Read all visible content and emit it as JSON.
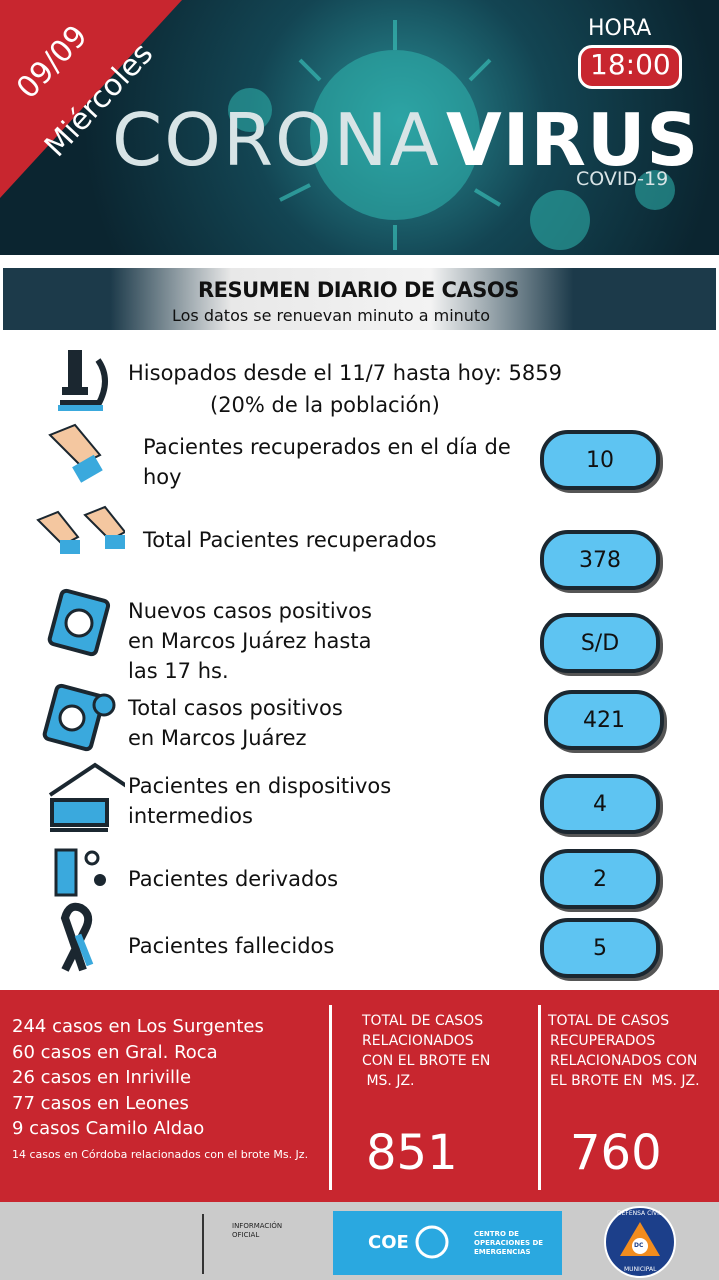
{
  "header": {
    "date": "09/09",
    "weekday": "Miércoles",
    "time_label": "HORA",
    "time": "18:00",
    "title_a": "CORONA",
    "title_b": "VIRUS",
    "subtitle": "COVID-19"
  },
  "summary": {
    "title": "RESUMEN DIARIO DE CASOS",
    "subtitle": "Los datos se renuevan minuto a minuto"
  },
  "rows": [
    {
      "lines": [
        "Hisopados desde el 11/7 hasta hoy: 5859",
        "(20% de la población)"
      ]
    },
    {
      "lines": [
        "Pacientes recuperados en el día de",
        "hoy"
      ],
      "value": 10
    },
    {
      "lines": [
        "Total Pacientes recuperados"
      ],
      "value": 378
    },
    {
      "lines": [
        "Nuevos casos positivos",
        "en Marcos Juárez hasta",
        "las 17 hs."
      ],
      "value": "S/D"
    },
    {
      "lines": [
        "Total casos positivos",
        "en Marcos Juárez"
      ],
      "value": 421
    },
    {
      "lines": [
        "Pacientes en dispositivos",
        "intermedios"
      ],
      "value": 4
    },
    {
      "lines": [
        "Pacientes derivados"
      ],
      "value": 2
    },
    {
      "lines": [
        "Pacientes fallecidos"
      ],
      "value": 5
    }
  ],
  "localities": {
    "lines": [
      "244 casos en Los Surgentes",
      "60 casos en Gral. Roca",
      "26 casos en Inriville",
      "77 casos en Leones",
      "9 casos Camilo Aldao"
    ],
    "note": "14 casos en Córdoba relacionados con el brote Ms. Jz."
  },
  "outbreak_total": {
    "lines": [
      "TOTAL DE CASOS",
      "RELACIONADOS",
      "CON EL BROTE EN",
      " MS. JZ."
    ],
    "value": 851
  },
  "outbreak_recovered": {
    "lines": [
      "TOTAL DE CASOS",
      "RECUPERADOS",
      "RELACIONADOS CON",
      "EL BROTE EN  MS. JZ."
    ],
    "value": 760
  },
  "footer": {
    "info": [
      "INFORMACIÓN",
      "OFICIAL"
    ],
    "coe": "COE",
    "coe_name": [
      "CENTRO DE",
      "OPERACIONES DE",
      "EMERGENCIAS"
    ],
    "seal_top": "DEFENSA CIVIL",
    "seal_mid": "DC",
    "seal_bottom": "MUNICIPAL"
  }
}
